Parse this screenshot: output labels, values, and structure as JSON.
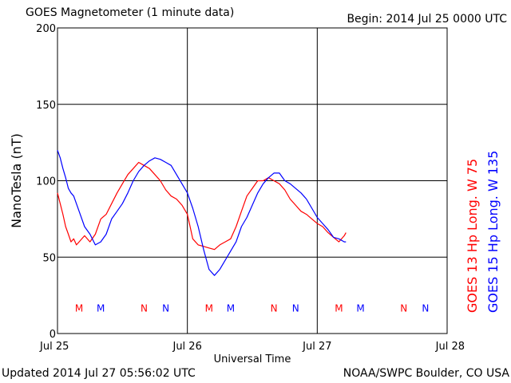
{
  "header": {
    "title": "GOES Magnetometer (1 minute data)",
    "begin": "Begin:  2014 Jul 25 0000 UTC"
  },
  "footer": {
    "updated": "Updated 2014 Jul 27 05:56:02 UTC",
    "credit": "NOAA/SWPC Boulder, CO USA"
  },
  "chart_data": {
    "type": "line",
    "title": "GOES Magnetometer (1 minute data)",
    "xlabel": "Universal Time",
    "ylabel": "NanoTesla (nT)",
    "xlim": [
      0,
      72
    ],
    "x_unit": "hours since 2014 Jul 25 0000 UTC",
    "ylim": [
      0,
      200
    ],
    "yticks": [
      0,
      50,
      100,
      150,
      200
    ],
    "xticks": [
      {
        "x": 0,
        "label": "Jul 25"
      },
      {
        "x": 24,
        "label": "Jul 26"
      },
      {
        "x": 48,
        "label": "Jul 27"
      },
      {
        "x": 72,
        "label": "Jul 28"
      }
    ],
    "grid": true,
    "series": [
      {
        "name": "GOES 13 Hp  Long. W 75",
        "color": "#ff0000",
        "x": [
          0,
          0.5,
          1,
          1.5,
          2,
          2.5,
          3,
          3.5,
          4,
          5,
          6,
          7,
          8,
          9,
          10,
          11,
          12,
          13,
          14,
          15,
          16,
          17,
          18,
          19,
          20,
          21,
          22,
          23,
          24,
          24.5,
          25,
          26,
          27,
          28,
          29,
          30,
          31,
          32,
          33,
          34,
          35,
          36,
          37,
          38,
          39,
          40,
          41,
          42,
          43,
          44,
          45,
          46,
          47,
          48,
          49,
          50,
          51,
          52,
          53,
          53.3
        ],
        "values": [
          92,
          85,
          78,
          70,
          65,
          60,
          62,
          58,
          60,
          64,
          60,
          65,
          75,
          78,
          85,
          92,
          98,
          104,
          108,
          112,
          110,
          108,
          104,
          100,
          94,
          90,
          88,
          84,
          78,
          70,
          62,
          58,
          57,
          56,
          55,
          58,
          60,
          62,
          70,
          80,
          90,
          95,
          100,
          100,
          102,
          100,
          98,
          94,
          88,
          84,
          80,
          78,
          75,
          72,
          70,
          66,
          63,
          60,
          64,
          66
        ]
      },
      {
        "name": "GOES 15 Hp  Long. W 135",
        "color": "#0000ff",
        "x": [
          0,
          0.5,
          1,
          1.5,
          2,
          2.5,
          3,
          4,
          5,
          6,
          7,
          8,
          9,
          10,
          11,
          12,
          13,
          14,
          15,
          16,
          17,
          18,
          19,
          20,
          21,
          22,
          23,
          24,
          25,
          26,
          27,
          28,
          29,
          30,
          31,
          32,
          33,
          34,
          35,
          36,
          37,
          38,
          39,
          40,
          41,
          42,
          43,
          44,
          45,
          46,
          47,
          48,
          49,
          50,
          51,
          52,
          53,
          53.3
        ],
        "values": [
          120,
          115,
          108,
          102,
          95,
          92,
          90,
          80,
          70,
          65,
          58,
          60,
          65,
          75,
          80,
          85,
          92,
          100,
          106,
          110,
          113,
          115,
          114,
          112,
          110,
          104,
          98,
          92,
          82,
          70,
          55,
          42,
          38,
          42,
          48,
          54,
          60,
          70,
          76,
          84,
          92,
          98,
          102,
          105,
          105,
          100,
          98,
          95,
          92,
          88,
          82,
          76,
          72,
          68,
          63,
          62,
          60,
          60
        ]
      }
    ],
    "markers": [
      {
        "label": "M",
        "x": 4.0,
        "color": "#ff0000"
      },
      {
        "label": "M",
        "x": 8.0,
        "color": "#0000ff"
      },
      {
        "label": "N",
        "x": 16.0,
        "color": "#ff0000"
      },
      {
        "label": "N",
        "x": 20.0,
        "color": "#0000ff"
      },
      {
        "label": "M",
        "x": 28.0,
        "color": "#ff0000"
      },
      {
        "label": "M",
        "x": 32.0,
        "color": "#0000ff"
      },
      {
        "label": "N",
        "x": 40.0,
        "color": "#ff0000"
      },
      {
        "label": "N",
        "x": 44.0,
        "color": "#0000ff"
      },
      {
        "label": "M",
        "x": 52.0,
        "color": "#ff0000"
      },
      {
        "label": "M",
        "x": 56.0,
        "color": "#0000ff"
      },
      {
        "label": "N",
        "x": 64.0,
        "color": "#ff0000"
      },
      {
        "label": "N",
        "x": 68.0,
        "color": "#0000ff"
      }
    ],
    "marker_y": 17,
    "right_labels": [
      {
        "text": "GOES 13 Hp  Long. W 75",
        "color": "#ff0000"
      },
      {
        "text": "GOES 15 Hp  Long. W 135",
        "color": "#0000ff"
      }
    ]
  }
}
